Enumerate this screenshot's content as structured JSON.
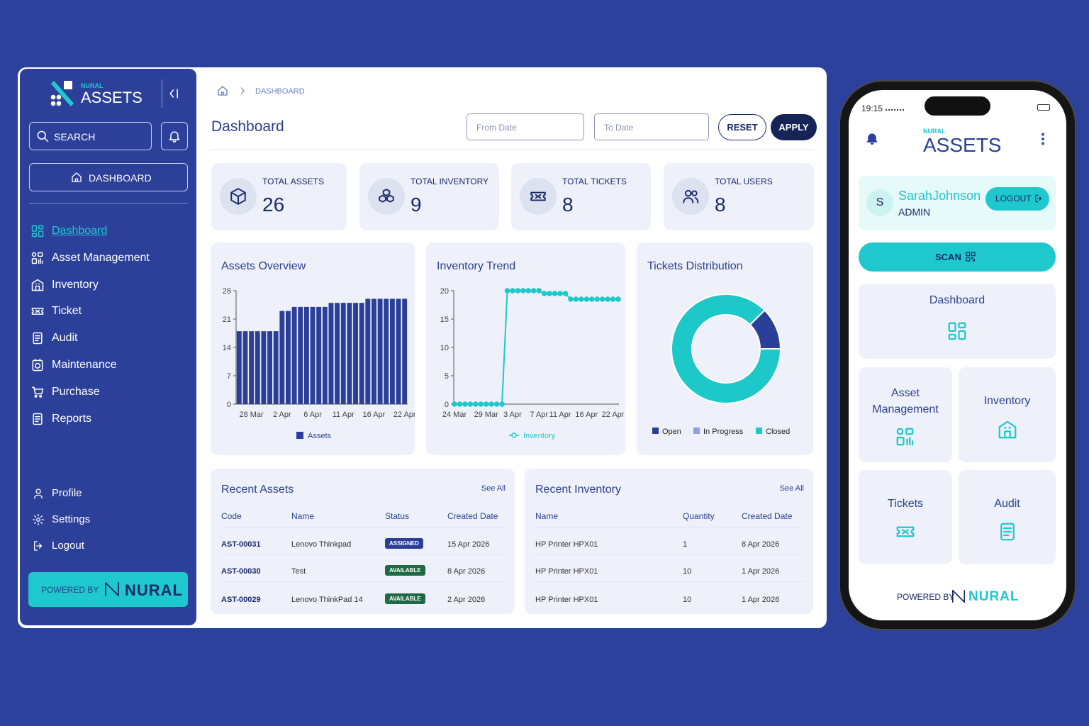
{
  "sidebar": {
    "brand_small": "NURAL",
    "brand": "ASSETS",
    "search": "SEARCH",
    "dashboard_button": "DASHBOARD",
    "menu": [
      "Dashboard",
      "Asset Management",
      "Inventory",
      "Ticket",
      "Audit",
      "Maintenance",
      "Purchase",
      "Reports"
    ],
    "bottom_menu": [
      "Profile",
      "Settings",
      "Logout"
    ],
    "powered_by": "POWERED BY",
    "powered_brand": "NURAL"
  },
  "header": {
    "breadcrumb": "DASHBOARD",
    "title": "Dashboard",
    "from_date": "From Date",
    "to_date": "To Date",
    "reset": "RESET",
    "apply": "APPLY"
  },
  "stats": [
    {
      "label": "TOTAL ASSETS",
      "value": 26
    },
    {
      "label": "TOTAL INVENTORY",
      "value": 9
    },
    {
      "label": "TOTAL TICKETS",
      "value": 8
    },
    {
      "label": "TOTAL USERS",
      "value": 8
    }
  ],
  "chart_data": [
    {
      "type": "bar",
      "title": "Assets Overview",
      "categories": [
        null,
        null,
        "28 Mar",
        null,
        null,
        null,
        null,
        "2 Apr",
        null,
        null,
        null,
        null,
        "6 Apr",
        null,
        null,
        null,
        null,
        "11 Apr",
        null,
        null,
        null,
        null,
        "16 Apr",
        null,
        null,
        null,
        null,
        "22 Apr"
      ],
      "series": [
        {
          "name": "Assets",
          "color": "#2b3f99",
          "values": [
            18,
            18,
            18,
            18,
            18,
            18,
            18,
            23,
            23,
            24,
            24,
            24,
            24,
            24,
            24,
            25,
            25,
            25,
            25,
            25,
            25,
            26,
            26,
            26,
            26,
            26,
            26,
            26
          ]
        }
      ],
      "ylim": [
        0,
        28
      ],
      "yticks": [
        0,
        7,
        14,
        21,
        28
      ]
    },
    {
      "type": "line",
      "title": "Inventory Trend",
      "categories": [
        "24 Mar",
        null,
        null,
        null,
        null,
        null,
        "29 Mar",
        null,
        null,
        null,
        null,
        "3 Apr",
        null,
        null,
        null,
        null,
        "7 Apr",
        null,
        null,
        null,
        "11 Apr",
        null,
        null,
        null,
        null,
        "16 Apr",
        null,
        null,
        null,
        null,
        "22 Apr",
        null
      ],
      "series": [
        {
          "name": "Inventory",
          "color": "#1ec8c8",
          "values": [
            0,
            0,
            0,
            0,
            0,
            0,
            0,
            0,
            0,
            0,
            20,
            20,
            20,
            20,
            20,
            20,
            20,
            19.5,
            19.5,
            19.5,
            19.5,
            19.5,
            18.5,
            18.5,
            18.5,
            18.5,
            18.5,
            18.5,
            18.5,
            18.5,
            18.5,
            18.5
          ]
        }
      ],
      "ylim": [
        0,
        20
      ],
      "yticks": [
        0,
        5,
        10,
        15,
        20
      ]
    },
    {
      "type": "donut",
      "title": "Tickets Distribution",
      "categories": [
        "Open",
        "In Progress",
        "Closed"
      ],
      "values": [
        1,
        0,
        7
      ],
      "colors": [
        "#2b3f99",
        "#8fa0e0",
        "#1ec8c8"
      ]
    }
  ],
  "recent_assets": {
    "title": "Recent Assets",
    "see_all": "See All",
    "columns": [
      "Code",
      "Name",
      "Status",
      "Created Date"
    ],
    "rows": [
      [
        "AST-00031",
        "Lenovo Thinkpad",
        "ASSIGNED",
        "15 Apr 2026"
      ],
      [
        "AST-00030",
        "Test",
        "AVAILABLE",
        "8 Apr 2026"
      ],
      [
        "AST-00029",
        "Lenovo ThinkPad 14",
        "AVAILABLE",
        "2 Apr 2026"
      ]
    ],
    "status_colors": [
      "#2b3f99",
      "#1d6a44",
      "#1d6a44"
    ]
  },
  "recent_inventory": {
    "title": "Recent Inventory",
    "see_all": "See All",
    "columns": [
      "Name",
      "Quantity",
      "Created Date"
    ],
    "rows": [
      [
        "HP Printer HPX01",
        1,
        "8 Apr 2026"
      ],
      [
        "HP Printer HPX01",
        10,
        "1 Apr 2026"
      ],
      [
        "HP Printer HPX01",
        10,
        "1 Apr 2026"
      ]
    ]
  },
  "mobile": {
    "time": "19:15",
    "brand_small": "NURAL",
    "brand": "ASSETS",
    "user_initial": "S",
    "user_name": "SarahJohnson",
    "role": "ADMIN",
    "logout": "LOGOUT",
    "scan": "SCAN",
    "tiles": [
      "Dashboard",
      "Asset Management",
      "Inventory",
      "Tickets",
      "Audit"
    ],
    "powered_by": "POWERED BY",
    "powered_brand": "NURAL"
  }
}
